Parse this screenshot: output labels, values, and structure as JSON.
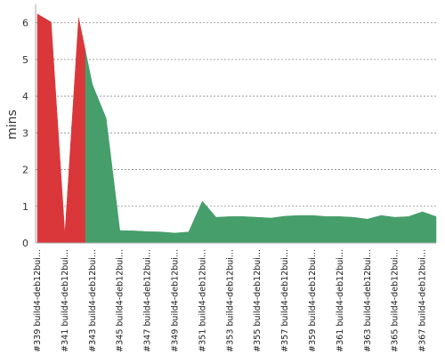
{
  "chart_data": {
    "type": "area",
    "y_label": "mins",
    "categories": [
      "#339 build4-deb12bui...",
      null,
      "#341 build4-deb12bui...",
      null,
      "#343 build4-deb12bui...",
      null,
      "#345 build4-deb12bui...",
      null,
      "#347 build4-deb12bui...",
      null,
      "#349 build4-deb12bui...",
      null,
      "#351 build4-deb12bui...",
      null,
      "#353 build4-deb12bui...",
      null,
      "#355 build4-deb12bui...",
      null,
      "#357 build4-deb12bui...",
      null,
      "#359 build4-deb12bui...",
      null,
      "#361 build4-deb12bui...",
      null,
      "#363 build4-deb12bui...",
      null,
      "#365 build4-deb12bui...",
      null,
      "#367 build4-deb12bui...",
      null
    ],
    "values": [
      6.24,
      6.02,
      0.24,
      6.14,
      4.32,
      3.4,
      0.34,
      0.33,
      0.31,
      0.3,
      0.27,
      0.3,
      1.14,
      0.7,
      0.72,
      0.72,
      0.7,
      0.68,
      0.73,
      0.75,
      0.75,
      0.72,
      0.72,
      0.7,
      0.65,
      0.75,
      0.7,
      0.72,
      0.85,
      0.72
    ],
    "colors": [
      "#d9373a",
      "#d9373a",
      "#d9373a",
      "#d9373a",
      "#469e6a",
      "#469e6a",
      "#469e6a",
      "#469e6a",
      "#469e6a",
      "#469e6a",
      "#469e6a",
      "#469e6a",
      "#469e6a",
      "#469e6a",
      "#469e6a",
      "#469e6a",
      "#469e6a",
      "#469e6a",
      "#469e6a",
      "#469e6a",
      "#469e6a",
      "#469e6a",
      "#469e6a",
      "#469e6a",
      "#469e6a",
      "#469e6a",
      "#469e6a",
      "#469e6a",
      "#469e6a",
      "#469e6a"
    ],
    "ylim": [
      0,
      6.5
    ],
    "yticks": [
      0,
      1,
      2,
      3,
      4,
      5,
      6
    ],
    "grid": true
  }
}
